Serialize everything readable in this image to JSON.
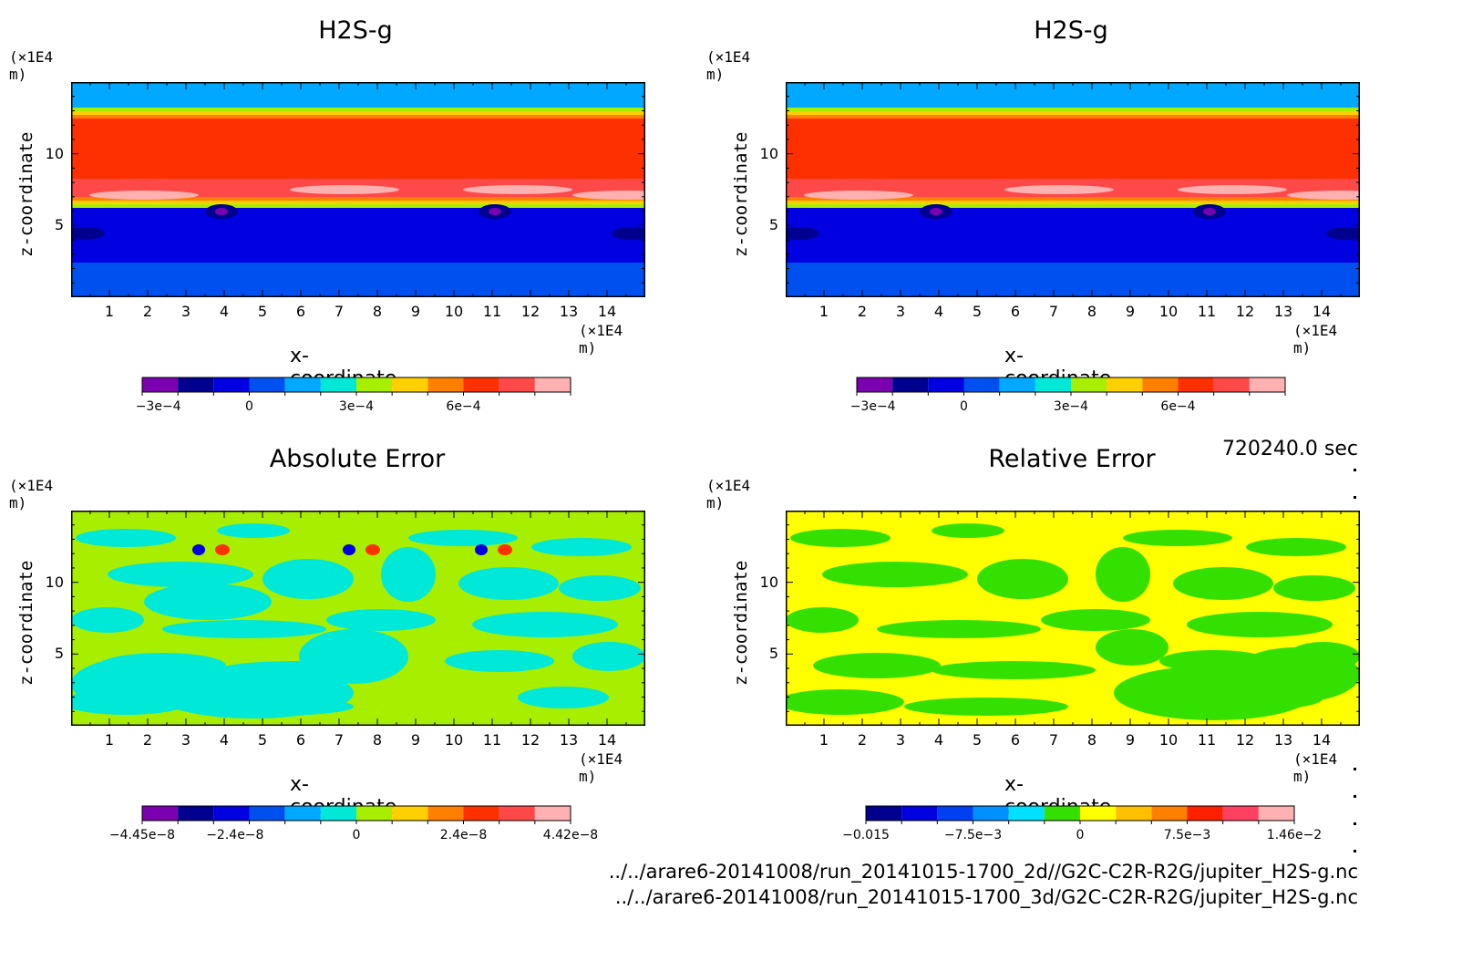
{
  "time_label": "720240.0 sec",
  "footer_lines": [
    "../../arare6-20141008/run_20141015-1700_2d//G2C-C2R-R2G/jupiter_H2S-g.nc",
    "../../arare6-20141008/run_20141015-1700_3d/G2C-C2R-R2G/jupiter_H2S-g.nc"
  ],
  "chart_data": [
    {
      "type": "heatmap",
      "title": "H2S-g",
      "xlabel": "x-coordinate",
      "ylabel": "z-coordinate",
      "x_unit": "(×1E4 m)",
      "y_unit": "(×1E4 m)",
      "x_ticks": [
        "1",
        "2",
        "3",
        "4",
        "5",
        "6",
        "7",
        "8",
        "9",
        "10",
        "11",
        "12",
        "13",
        "14"
      ],
      "y_ticks": [
        "5",
        "10"
      ],
      "xlim": [
        0,
        15
      ],
      "ylim": [
        0,
        15
      ],
      "colorbar": {
        "colors": [
          "#7a00b0",
          "#00008f",
          "#0000e0",
          "#0050f0",
          "#00a8ff",
          "#00e8d8",
          "#a8ee00",
          "#ffd000",
          "#ff8000",
          "#ff3000",
          "#ff4848",
          "#ffb0b0"
        ],
        "labels": [
          "−3e−4",
          "0",
          "3e−4",
          "6e−4"
        ],
        "label_index": [
          0.45,
          3.0,
          6.0,
          9.0
        ]
      }
    },
    {
      "type": "heatmap",
      "title": "H2S-g",
      "xlabel": "x-coordinate",
      "ylabel": "z-coordinate",
      "x_unit": "(×1E4 m)",
      "y_unit": "(×1E4 m)",
      "x_ticks": [
        "1",
        "2",
        "3",
        "4",
        "5",
        "6",
        "7",
        "8",
        "9",
        "10",
        "11",
        "12",
        "13",
        "14"
      ],
      "y_ticks": [
        "5",
        "10"
      ],
      "xlim": [
        0,
        15
      ],
      "ylim": [
        0,
        15
      ],
      "colorbar": {
        "colors": [
          "#7a00b0",
          "#00008f",
          "#0000e0",
          "#0050f0",
          "#00a8ff",
          "#00e8d8",
          "#a8ee00",
          "#ffd000",
          "#ff8000",
          "#ff3000",
          "#ff4848",
          "#ffb0b0"
        ],
        "labels": [
          "−3e−4",
          "0",
          "3e−4",
          "6e−4"
        ],
        "label_index": [
          0.45,
          3.0,
          6.0,
          9.0
        ]
      }
    },
    {
      "type": "heatmap",
      "title": "Absolute Error",
      "xlabel": "x-coordinate",
      "ylabel": "z-coordinate",
      "x_unit": "(×1E4 m)",
      "y_unit": "(×1E4 m)",
      "x_ticks": [
        "1",
        "2",
        "3",
        "4",
        "5",
        "6",
        "7",
        "8",
        "9",
        "10",
        "11",
        "12",
        "13",
        "14"
      ],
      "y_ticks": [
        "5",
        "10"
      ],
      "xlim": [
        0,
        15
      ],
      "ylim": [
        0,
        15
      ],
      "colorbar": {
        "colors": [
          "#7a00b0",
          "#00008f",
          "#0000e0",
          "#0050f0",
          "#00a8ff",
          "#00e8d8",
          "#a8ee00",
          "#ffd000",
          "#ff8000",
          "#ff3000",
          "#ff4848",
          "#ffb0b0"
        ],
        "labels": [
          "−4.45e−8",
          "−2.4e−8",
          "0",
          "2.4e−8",
          "4.42e−8"
        ],
        "label_index": [
          0.0,
          2.6,
          6.0,
          9.0,
          12.0
        ]
      }
    },
    {
      "type": "heatmap",
      "title": "Relative Error",
      "xlabel": "x-coordinate",
      "ylabel": "z-coordinate",
      "x_unit": "(×1E4 m)",
      "y_unit": "(×1E4 m)",
      "x_ticks": [
        "1",
        "2",
        "3",
        "4",
        "5",
        "6",
        "7",
        "8",
        "9",
        "10",
        "11",
        "12",
        "13",
        "14"
      ],
      "y_ticks": [
        "5",
        "10"
      ],
      "xlim": [
        0,
        15
      ],
      "ylim": [
        0,
        15
      ],
      "colorbar": {
        "colors": [
          "#00008f",
          "#0000e0",
          "#0040f0",
          "#0090ff",
          "#00e0ff",
          "#33e000",
          "#ffff00",
          "#ffc000",
          "#ff8000",
          "#ff2000",
          "#ff4060",
          "#ffb0b0"
        ],
        "labels": [
          "−0.015",
          "−7.5e−3",
          "0",
          "7.5e−3",
          "1.46e−2"
        ],
        "label_index": [
          0.0,
          3.0,
          6.0,
          9.0,
          12.0
        ]
      }
    }
  ]
}
